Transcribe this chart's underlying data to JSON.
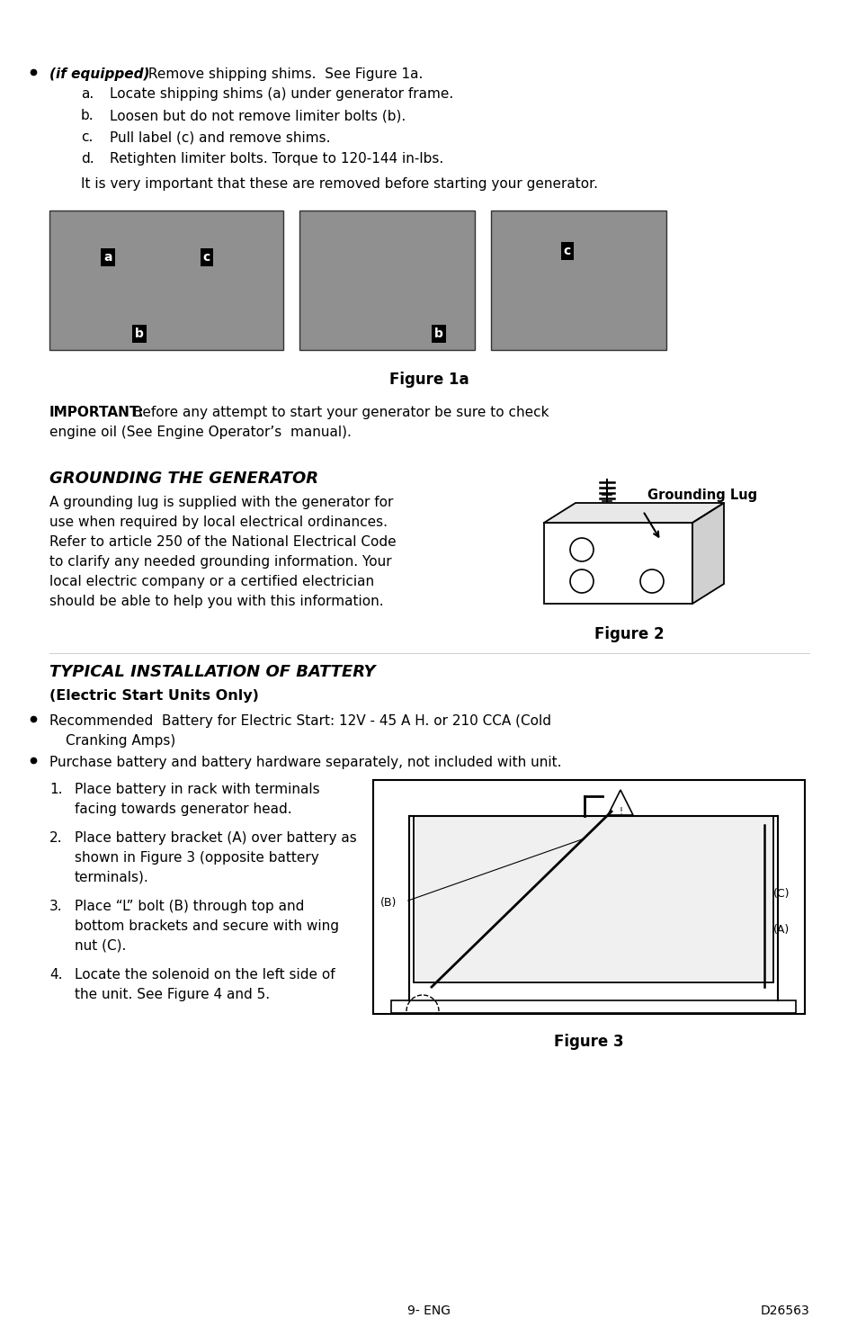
{
  "page_bg": "#ffffff",
  "text_color": "#000000",
  "bullet1_bold_italic": "(if equipped)",
  "bullet1_rest": " Remove shipping shims.  See Figure 1a.",
  "sub_items": [
    {
      "label": "a.",
      "text": "Locate shipping shims (a) under generator frame."
    },
    {
      "label": "b.",
      "text": "Loosen but do not remove limiter bolts (b)."
    },
    {
      "label": "c.",
      "text": "Pull label (c) and remove shims."
    },
    {
      "label": "d.",
      "text": "Retighten limiter bolts. Torque to 120-144 in-lbs."
    }
  ],
  "important_note": "It is very important that these are removed before starting your generator.",
  "figure1a_caption": "Figure 1a",
  "important_bold": "IMPORTANT:",
  "important_rest1": " Before any attempt to start your generator be sure to check",
  "important_rest2": "engine oil (See Engine Operator’s  manual).",
  "grounding_title": "GROUNDING THE GENERATOR",
  "grounding_lines": [
    "A grounding lug is supplied with the generator for",
    "use when required by local electrical ordinances.",
    "Refer to article 250 of the National Electrical Code",
    "to clarify any needed grounding information. Your",
    "local electric company or a certified electrician",
    "should be able to help you with this information."
  ],
  "grounding_lug_label": "Grounding Lug",
  "figure2_caption": "Figure 2",
  "battery_title": "TYPICAL INSTALLATION OF BATTERY",
  "battery_subtitle": "(Electric Start Units Only)",
  "battery_bullet1a": "Recommended  Battery for Electric Start: 12V - 45 A H. or 210 CCA (Cold",
  "battery_bullet1b": "Cranking Amps)",
  "battery_bullet2": "Purchase battery and battery hardware separately, not included with unit.",
  "battery_steps": [
    {
      "num": "1.",
      "lines": [
        "Place battery in rack with terminals",
        "facing towards generator head."
      ]
    },
    {
      "num": "2.",
      "lines": [
        "Place battery bracket (A) over battery as",
        "shown in Figure 3 (opposite battery",
        "terminals)."
      ]
    },
    {
      "num": "3.",
      "lines": [
        "Place “L” bolt (B) through top and",
        "bottom brackets and secure with wing",
        "nut (C)."
      ]
    },
    {
      "num": "4.",
      "lines": [
        "Locate the solenoid on the left side of",
        "the unit. See Figure 4 and 5."
      ]
    }
  ],
  "figure3_caption": "Figure 3",
  "footer_left": "9- ENG",
  "footer_right": "D26563"
}
